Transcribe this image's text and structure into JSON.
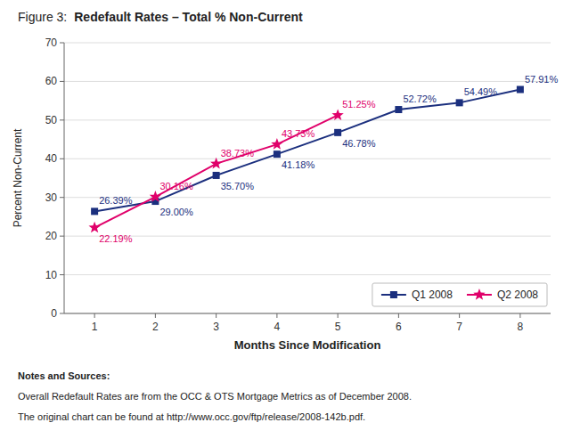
{
  "chart_data": {
    "type": "line",
    "title": "Redefault Rates – Total % Non-Current",
    "annotations": [
      "Figure 3:",
      "Notes and Sources:",
      "Overall Redefault Rates are from the OCC & OTS Mortgage Metrics as of December 2008.",
      "The original chart can be found at http://www.occ.gov/ftp/release/2008-142b.pdf."
    ],
    "x_label": "Months Since Modification",
    "y_label": "Percent Non-Current",
    "x": [
      1,
      2,
      3,
      4,
      5,
      6,
      7,
      8
    ],
    "series": [
      {
        "name": "Q1 2008",
        "color": "#1b2f7e",
        "marker": "square",
        "values": [
          26.39,
          29.0,
          35.7,
          41.18,
          46.78,
          52.72,
          54.49,
          57.91
        ],
        "value_labels": [
          "26.39%",
          "29.00%",
          "35.70%",
          "41.18%",
          "46.78%",
          "52.72%",
          "54.49%",
          "57.91%"
        ]
      },
      {
        "name": "Q2 2008",
        "color": "#e0006a",
        "marker": "star",
        "values": [
          22.19,
          30.16,
          38.73,
          43.73,
          51.25,
          null,
          null,
          null
        ],
        "value_labels": [
          "22.19%",
          "30.16%",
          "38.73%",
          "43.73%",
          "51.25%",
          null,
          null,
          null
        ]
      }
    ],
    "xlim": [
      0.5,
      8.5
    ],
    "xticks": [
      1,
      2,
      3,
      4,
      5,
      6,
      7,
      8
    ],
    "ylim": [
      0,
      70
    ],
    "yticks": [
      0,
      10,
      20,
      30,
      40,
      50,
      60,
      70
    ],
    "grid": true,
    "legend": "lower right",
    "data_labels": true
  }
}
